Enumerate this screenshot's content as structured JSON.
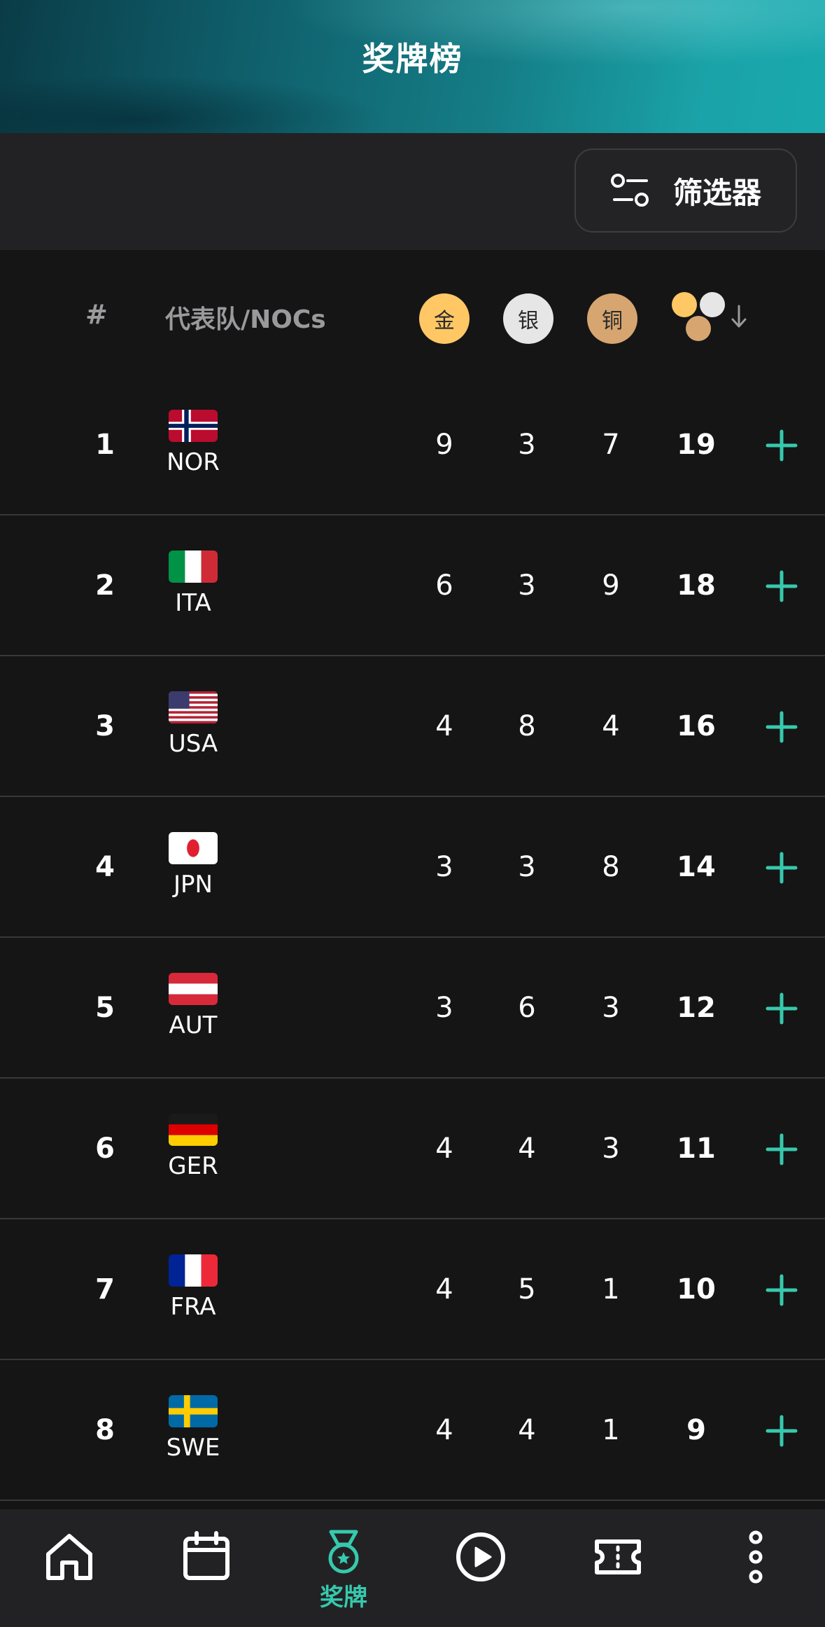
{
  "header": {
    "title": "奖牌榜"
  },
  "filter": {
    "label": "筛选器",
    "icon": "filter-sliders-icon"
  },
  "table": {
    "headers": {
      "rank": "#",
      "team": "代表队/NOCs",
      "gold": "金",
      "silver": "银",
      "bronze": "铜",
      "total_icon": "total-medals-sort-icon"
    },
    "rows": [
      {
        "rank": "1",
        "noc": "NOR",
        "gold": "9",
        "silver": "3",
        "bronze": "7",
        "total": "19"
      },
      {
        "rank": "2",
        "noc": "ITA",
        "gold": "6",
        "silver": "3",
        "bronze": "9",
        "total": "18"
      },
      {
        "rank": "3",
        "noc": "USA",
        "gold": "4",
        "silver": "8",
        "bronze": "4",
        "total": "16"
      },
      {
        "rank": "4",
        "noc": "JPN",
        "gold": "3",
        "silver": "3",
        "bronze": "8",
        "total": "14"
      },
      {
        "rank": "5",
        "noc": "AUT",
        "gold": "3",
        "silver": "6",
        "bronze": "3",
        "total": "12"
      },
      {
        "rank": "6",
        "noc": "GER",
        "gold": "4",
        "silver": "4",
        "bronze": "3",
        "total": "11"
      },
      {
        "rank": "7",
        "noc": "FRA",
        "gold": "4",
        "silver": "5",
        "bronze": "1",
        "total": "10"
      },
      {
        "rank": "8",
        "noc": "SWE",
        "gold": "4",
        "silver": "4",
        "bronze": "1",
        "total": "9"
      }
    ]
  },
  "colors": {
    "accent": "#36c9ad",
    "gold": "#ffc865",
    "silver": "#e6e6e6",
    "bronze": "#d7a570"
  },
  "bottom_nav": {
    "items": [
      {
        "icon": "home-icon"
      },
      {
        "icon": "calendar-icon"
      },
      {
        "icon": "medal-icon",
        "label": "奖牌",
        "active": true
      },
      {
        "icon": "play-icon"
      },
      {
        "icon": "ticket-icon"
      },
      {
        "icon": "more-vertical-icon"
      }
    ]
  }
}
